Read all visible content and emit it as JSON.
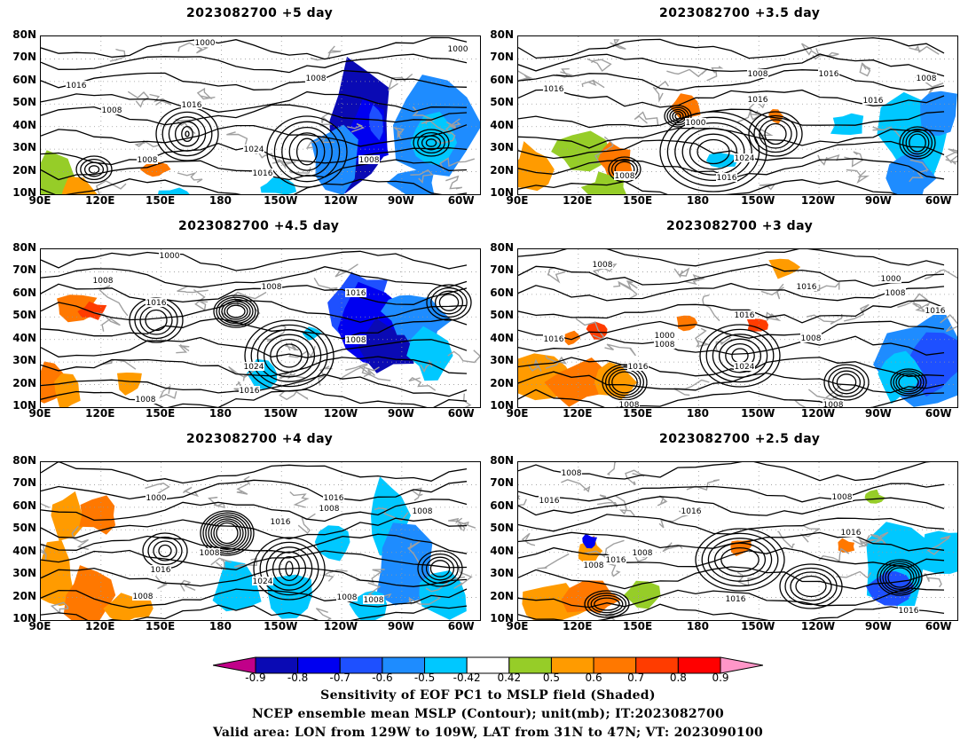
{
  "panels": [
    {
      "title": "2023082700  +5 day"
    },
    {
      "title": "2023082700  +3.5  day"
    },
    {
      "title": "2023082700  +4.5  day"
    },
    {
      "title": "2023082700  +3  day"
    },
    {
      "title": "2023082700  +4  day"
    },
    {
      "title": "2023082700  +2.5  day"
    }
  ],
  "axes": {
    "lat_labels": [
      "80N",
      "70N",
      "60N",
      "50N",
      "40N",
      "30N",
      "20N",
      "10N"
    ],
    "lon_labels": [
      "90E",
      "120E",
      "150E",
      "180",
      "150W",
      "120W",
      "90W",
      "60W"
    ]
  },
  "contour_labels": [
    "1000",
    "1008",
    "1016",
    "1024"
  ],
  "colorbar": {
    "labels": [
      "-0.9",
      "-0.8",
      "-0.7",
      "-0.6",
      "-0.5",
      "-0.42",
      "0.42",
      "0.5",
      "0.6",
      "0.7",
      "0.8",
      "0.9"
    ],
    "colors": [
      "#c10089",
      "#0a0ab4",
      "#0000f0",
      "#1e50ff",
      "#1e8cff",
      "#00c8ff",
      "#ffffff",
      "#96cd28",
      "#ff9b00",
      "#ff7800",
      "#ff3c00",
      "#ff0000",
      "#ff96c8"
    ]
  },
  "caption": {
    "line1": "Sensitivity of EOF PC1 to MSLP field (Shaded)",
    "line2": "NCEP ensemble mean MSLP (Contour); unit(mb); IT:2023082700",
    "line3": "Valid area: LON from 129W to 109W, LAT from 31N to 47N; VT: 2023090100"
  }
}
